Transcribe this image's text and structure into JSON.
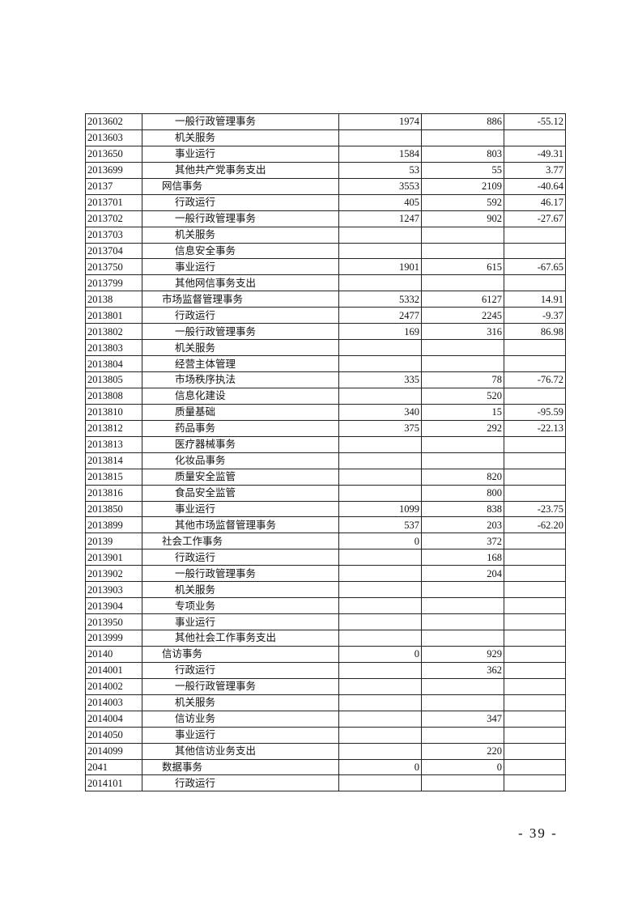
{
  "table": {
    "rows": [
      {
        "code": "2013602",
        "name": "一般行政管理事务",
        "level": 2,
        "a": "1974",
        "b": "886",
        "c": "-55.12"
      },
      {
        "code": "2013603",
        "name": "机关服务",
        "level": 2,
        "a": "",
        "b": "",
        "c": ""
      },
      {
        "code": "2013650",
        "name": "事业运行",
        "level": 2,
        "a": "1584",
        "b": "803",
        "c": "-49.31"
      },
      {
        "code": "2013699",
        "name": "其他共产党事务支出",
        "level": 2,
        "a": "53",
        "b": "55",
        "c": "3.77"
      },
      {
        "code": "20137",
        "name": "网信事务",
        "level": 1,
        "a": "3553",
        "b": "2109",
        "c": "-40.64"
      },
      {
        "code": "2013701",
        "name": "行政运行",
        "level": 2,
        "a": "405",
        "b": "592",
        "c": "46.17"
      },
      {
        "code": "2013702",
        "name": "一般行政管理事务",
        "level": 2,
        "a": "1247",
        "b": "902",
        "c": "-27.67"
      },
      {
        "code": "2013703",
        "name": "机关服务",
        "level": 2,
        "a": "",
        "b": "",
        "c": ""
      },
      {
        "code": "2013704",
        "name": "信息安全事务",
        "level": 2,
        "a": "",
        "b": "",
        "c": ""
      },
      {
        "code": "2013750",
        "name": "事业运行",
        "level": 2,
        "a": "1901",
        "b": "615",
        "c": "-67.65"
      },
      {
        "code": "2013799",
        "name": "其他网信事务支出",
        "level": 2,
        "a": "",
        "b": "",
        "c": ""
      },
      {
        "code": "20138",
        "name": "市场监督管理事务",
        "level": 1,
        "a": "5332",
        "b": "6127",
        "c": "14.91"
      },
      {
        "code": "2013801",
        "name": "行政运行",
        "level": 2,
        "a": "2477",
        "b": "2245",
        "c": "-9.37"
      },
      {
        "code": "2013802",
        "name": "一般行政管理事务",
        "level": 2,
        "a": "169",
        "b": "316",
        "c": "86.98"
      },
      {
        "code": "2013803",
        "name": "机关服务",
        "level": 2,
        "a": "",
        "b": "",
        "c": ""
      },
      {
        "code": "2013804",
        "name": "经营主体管理",
        "level": 2,
        "a": "",
        "b": "",
        "c": ""
      },
      {
        "code": "2013805",
        "name": "市场秩序执法",
        "level": 2,
        "a": "335",
        "b": "78",
        "c": "-76.72"
      },
      {
        "code": "2013808",
        "name": "信息化建设",
        "level": 2,
        "a": "",
        "b": "520",
        "c": ""
      },
      {
        "code": "2013810",
        "name": "质量基础",
        "level": 2,
        "a": "340",
        "b": "15",
        "c": "-95.59"
      },
      {
        "code": "2013812",
        "name": "药品事务",
        "level": 2,
        "a": "375",
        "b": "292",
        "c": "-22.13"
      },
      {
        "code": "2013813",
        "name": "医疗器械事务",
        "level": 2,
        "a": "",
        "b": "",
        "c": ""
      },
      {
        "code": "2013814",
        "name": "化妆品事务",
        "level": 2,
        "a": "",
        "b": "",
        "c": ""
      },
      {
        "code": "2013815",
        "name": "质量安全监管",
        "level": 2,
        "a": "",
        "b": "820",
        "c": ""
      },
      {
        "code": "2013816",
        "name": "食品安全监管",
        "level": 2,
        "a": "",
        "b": "800",
        "c": ""
      },
      {
        "code": "2013850",
        "name": "事业运行",
        "level": 2,
        "a": "1099",
        "b": "838",
        "c": "-23.75"
      },
      {
        "code": "2013899",
        "name": "其他市场监督管理事务",
        "level": 2,
        "a": "537",
        "b": "203",
        "c": "-62.20"
      },
      {
        "code": "20139",
        "name": "社会工作事务",
        "level": 1,
        "a": "0",
        "b": "372",
        "c": ""
      },
      {
        "code": "2013901",
        "name": "行政运行",
        "level": 2,
        "a": "",
        "b": "168",
        "c": ""
      },
      {
        "code": "2013902",
        "name": "一般行政管理事务",
        "level": 2,
        "a": "",
        "b": "204",
        "c": ""
      },
      {
        "code": "2013903",
        "name": "机关服务",
        "level": 2,
        "a": "",
        "b": "",
        "c": ""
      },
      {
        "code": "2013904",
        "name": "专项业务",
        "level": 2,
        "a": "",
        "b": "",
        "c": ""
      },
      {
        "code": "2013950",
        "name": "事业运行",
        "level": 2,
        "a": "",
        "b": "",
        "c": ""
      },
      {
        "code": "2013999",
        "name": "其他社会工作事务支出",
        "level": 2,
        "a": "",
        "b": "",
        "c": ""
      },
      {
        "code": "20140",
        "name": "信访事务",
        "level": 1,
        "a": "0",
        "b": "929",
        "c": ""
      },
      {
        "code": "2014001",
        "name": "行政运行",
        "level": 2,
        "a": "",
        "b": "362",
        "c": ""
      },
      {
        "code": "2014002",
        "name": "一般行政管理事务",
        "level": 2,
        "a": "",
        "b": "",
        "c": ""
      },
      {
        "code": "2014003",
        "name": "机关服务",
        "level": 2,
        "a": "",
        "b": "",
        "c": ""
      },
      {
        "code": "2014004",
        "name": "信访业务",
        "level": 2,
        "a": "",
        "b": "347",
        "c": ""
      },
      {
        "code": "2014050",
        "name": "事业运行",
        "level": 2,
        "a": "",
        "b": "",
        "c": ""
      },
      {
        "code": "2014099",
        "name": "其他信访业务支出",
        "level": 2,
        "a": "",
        "b": "220",
        "c": ""
      },
      {
        "code": "2041",
        "name": "数据事务",
        "level": 1,
        "a": "0",
        "b": "0",
        "c": ""
      },
      {
        "code": "2014101",
        "name": "行政运行",
        "level": 2,
        "a": "",
        "b": "",
        "c": ""
      }
    ]
  },
  "footer": {
    "page_number": "- 39 -"
  }
}
